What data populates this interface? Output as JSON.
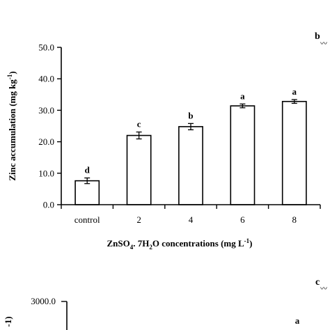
{
  "chart_data": [
    {
      "type": "bar",
      "panel_label": "b",
      "categories": [
        "control",
        "2",
        "4",
        "6",
        "8"
      ],
      "values": [
        7.6,
        22.0,
        24.8,
        31.4,
        32.8
      ],
      "errors": [
        0.9,
        1.1,
        1.0,
        0.6,
        0.6
      ],
      "significance": [
        "d",
        "c",
        "b",
        "a",
        "a"
      ],
      "ylim": [
        0,
        50
      ],
      "yticks": [
        0,
        10,
        20,
        30,
        40,
        50
      ],
      "ytick_labels": [
        "0.0",
        "10.0",
        "20.0",
        "30.0",
        "40.0",
        "50.0"
      ],
      "ylabel": {
        "main": "Zinc accumulation (mg kg",
        "sup": "-1",
        "tail": ")"
      },
      "xlabel": {
        "p1": "ZnSO",
        "sub1": "4",
        "p2": ". 7H",
        "sub2": "2",
        "p3": "O  concentrations (mg L",
        "sup": "-1",
        "p4": ")"
      }
    },
    {
      "type": "bar",
      "panel_label": "c",
      "ytick_labels": [
        "3000.0"
      ],
      "ylabel_fragment": "-1)",
      "visible_significance": [
        "a"
      ]
    }
  ],
  "colors": {
    "axis": "#000000",
    "bar_fill": "#ffffff",
    "bar_stroke": "#000000"
  }
}
